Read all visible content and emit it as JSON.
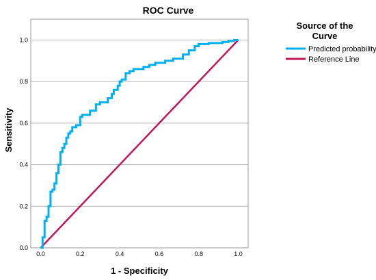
{
  "chart_data": {
    "type": "line",
    "title": "ROC Curve",
    "xlabel": "1 - Specificity",
    "ylabel": "Sensitivity",
    "xlim": [
      -0.05,
      1.05
    ],
    "ylim": [
      0,
      1.1
    ],
    "x_ticks": [
      "0.0",
      "0.2",
      "0.4",
      "0.6",
      "0.8",
      "1.0"
    ],
    "y_ticks": [
      "0.0",
      "0.2",
      "0.4",
      "0.6",
      "0.8",
      "1.0"
    ],
    "grid": "horizontal",
    "legend": {
      "title_line1": "Source of the",
      "title_line2": "Curve",
      "placement": "right"
    },
    "series": [
      {
        "name": "Predicted probability",
        "color": "#00b0f0",
        "step": true,
        "x": [
          0.0,
          0.01,
          0.01,
          0.02,
          0.02,
          0.03,
          0.03,
          0.04,
          0.04,
          0.05,
          0.05,
          0.06,
          0.06,
          0.07,
          0.07,
          0.08,
          0.08,
          0.09,
          0.09,
          0.1,
          0.1,
          0.11,
          0.11,
          0.12,
          0.12,
          0.13,
          0.13,
          0.14,
          0.14,
          0.15,
          0.15,
          0.16,
          0.16,
          0.18,
          0.18,
          0.2,
          0.2,
          0.21,
          0.21,
          0.25,
          0.25,
          0.28,
          0.28,
          0.3,
          0.3,
          0.34,
          0.34,
          0.36,
          0.36,
          0.37,
          0.37,
          0.39,
          0.39,
          0.4,
          0.4,
          0.41,
          0.41,
          0.43,
          0.43,
          0.45,
          0.45,
          0.47,
          0.47,
          0.52,
          0.52,
          0.55,
          0.55,
          0.58,
          0.58,
          0.63,
          0.63,
          0.67,
          0.67,
          0.72,
          0.72,
          0.75,
          0.75,
          0.78,
          0.78,
          0.8,
          0.8,
          0.85,
          0.85,
          0.92,
          0.92,
          0.95,
          0.95,
          0.98,
          0.98,
          1.0
        ],
        "y": [
          0.0,
          0.0,
          0.05,
          0.05,
          0.13,
          0.13,
          0.15,
          0.15,
          0.2,
          0.2,
          0.27,
          0.27,
          0.28,
          0.28,
          0.31,
          0.31,
          0.36,
          0.36,
          0.4,
          0.4,
          0.46,
          0.46,
          0.48,
          0.48,
          0.5,
          0.5,
          0.53,
          0.53,
          0.55,
          0.55,
          0.56,
          0.56,
          0.58,
          0.58,
          0.59,
          0.59,
          0.63,
          0.63,
          0.64,
          0.64,
          0.66,
          0.66,
          0.69,
          0.69,
          0.7,
          0.7,
          0.72,
          0.72,
          0.74,
          0.74,
          0.76,
          0.76,
          0.78,
          0.78,
          0.8,
          0.8,
          0.81,
          0.81,
          0.84,
          0.84,
          0.85,
          0.85,
          0.86,
          0.86,
          0.87,
          0.87,
          0.88,
          0.88,
          0.89,
          0.89,
          0.9,
          0.9,
          0.91,
          0.91,
          0.93,
          0.93,
          0.95,
          0.95,
          0.97,
          0.97,
          0.98,
          0.98,
          0.985,
          0.985,
          0.99,
          0.99,
          0.995,
          0.995,
          1.0,
          1.0
        ]
      },
      {
        "name": "Reference Line",
        "color": "#c0175a",
        "step": false,
        "x": [
          0.0,
          1.0
        ],
        "y": [
          0.0,
          1.0
        ]
      }
    ]
  }
}
